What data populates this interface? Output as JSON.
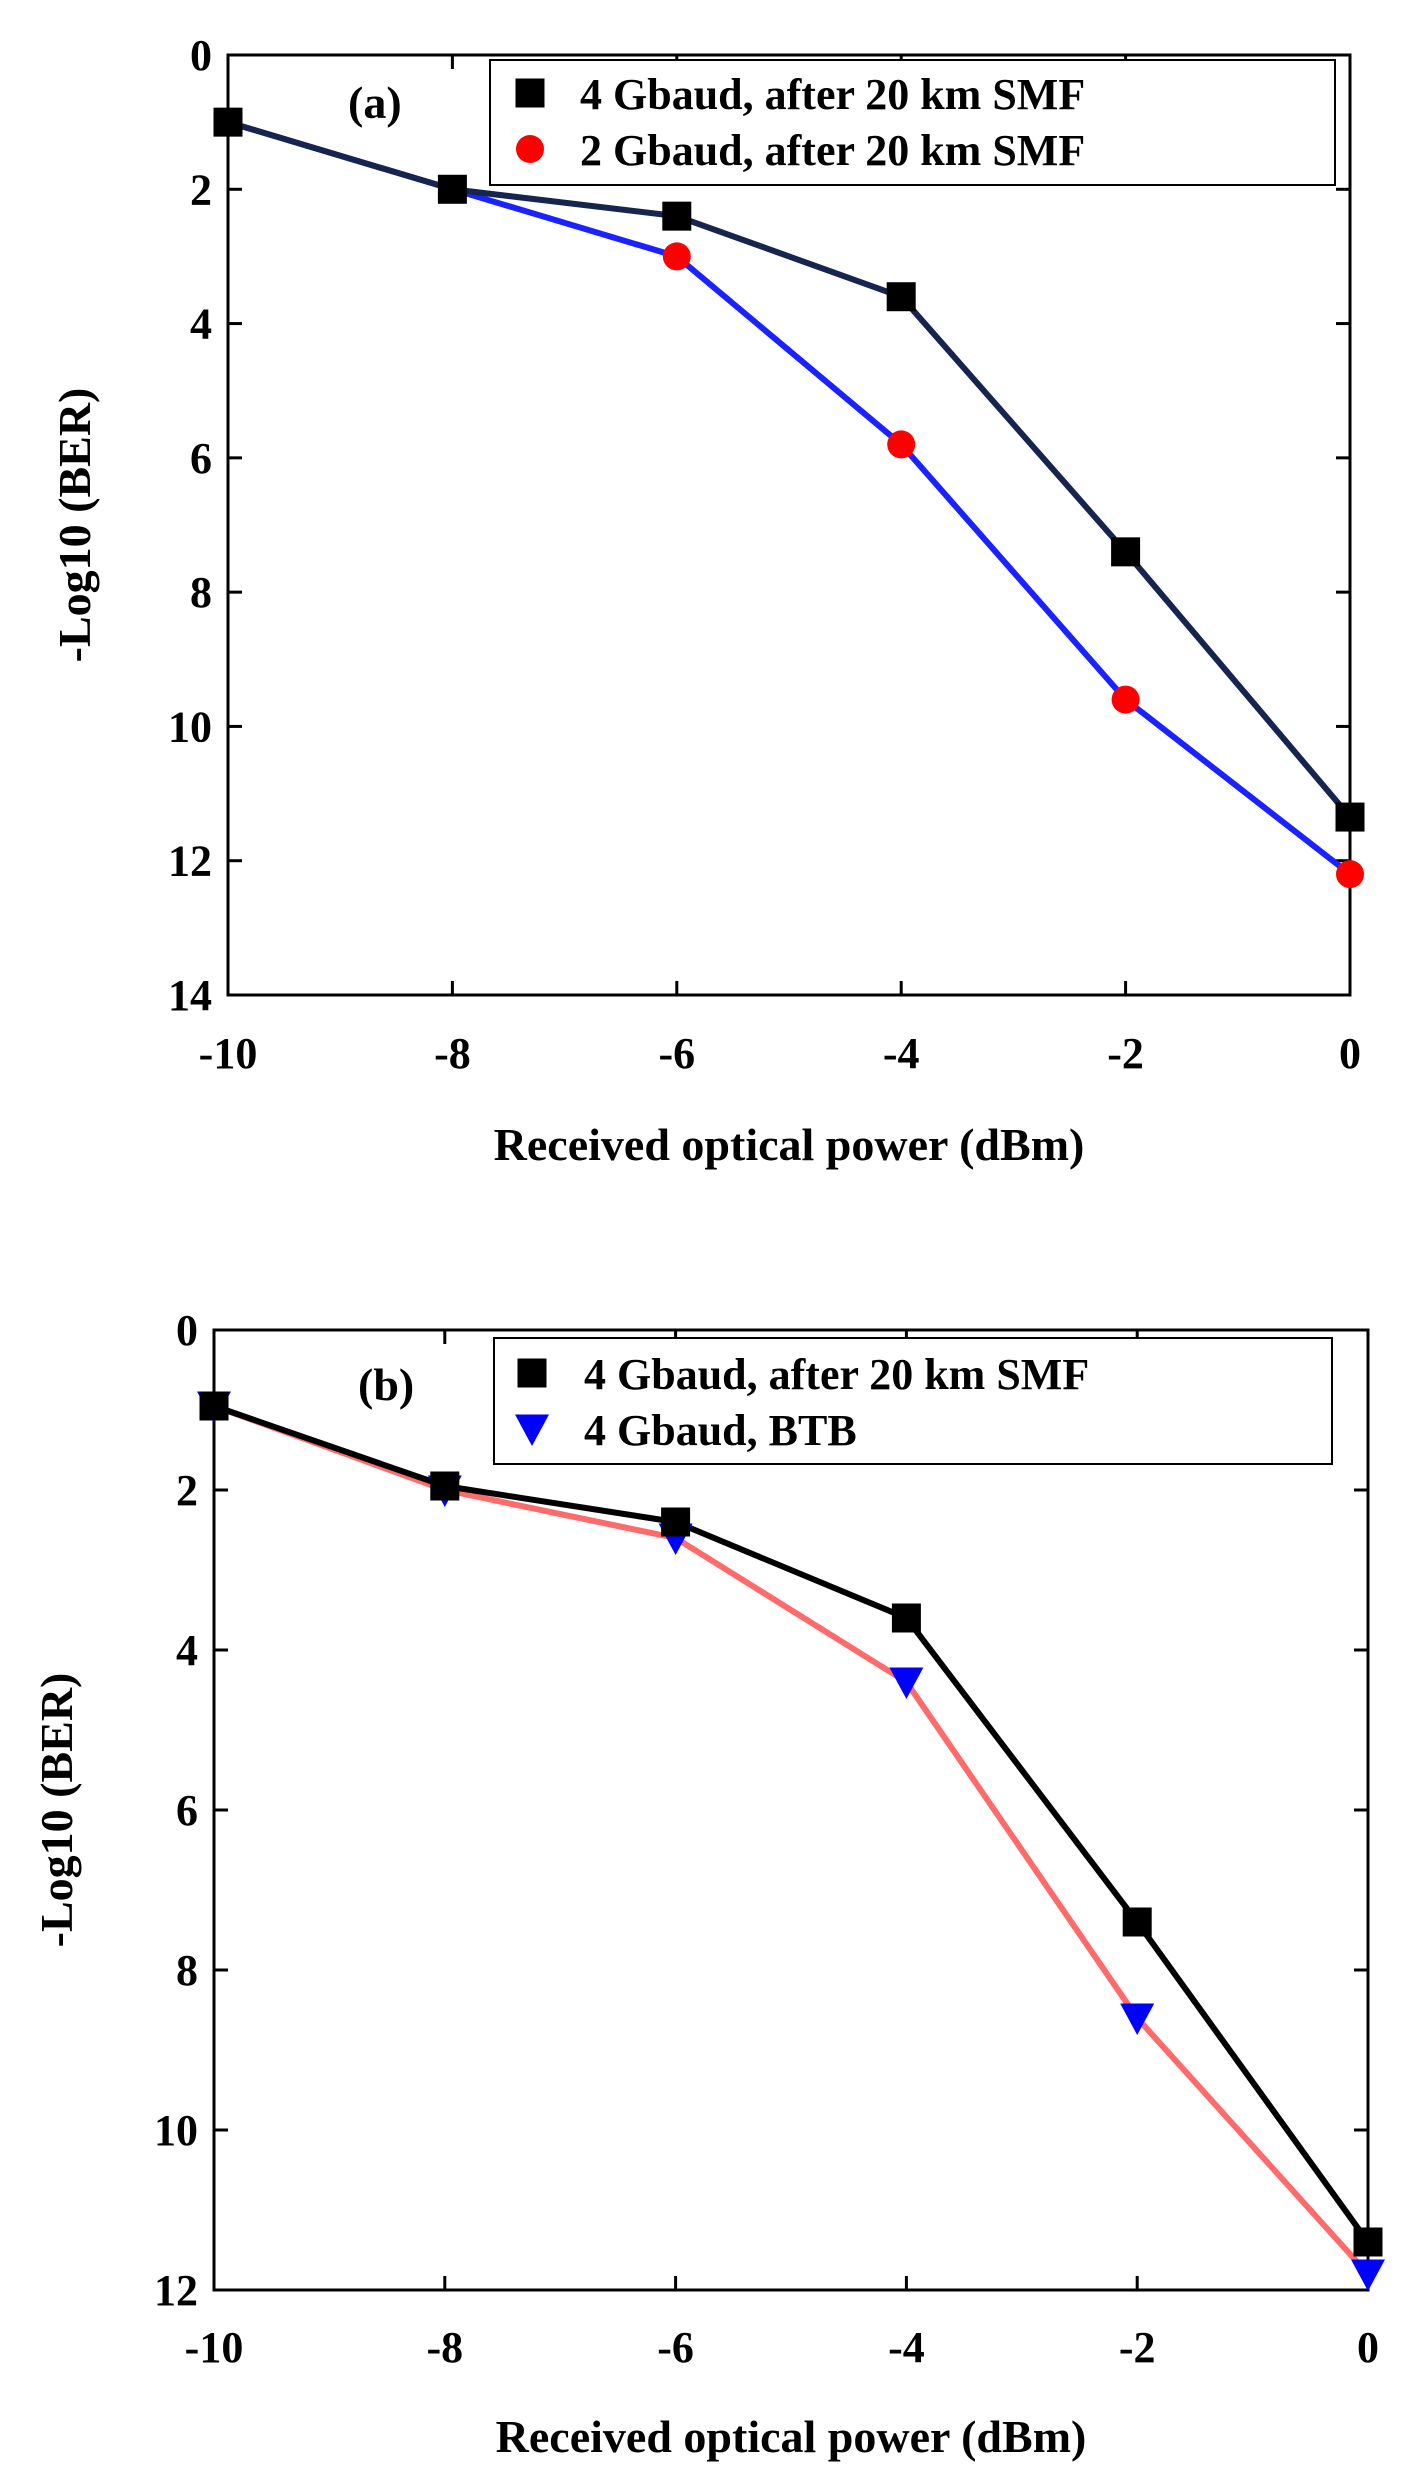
{
  "chart_data": [
    {
      "type": "line",
      "panel_label": "(a)",
      "xlabel": "Received optical power (dBm)",
      "ylabel": "-Log10 (BER)",
      "xlim": [
        -10,
        0
      ],
      "ylim": [
        0,
        14
      ],
      "y_inverted": true,
      "xticks": [
        -10,
        -8,
        -6,
        -4,
        -2,
        0
      ],
      "xtick_labels": [
        "-10",
        "-8",
        "-6",
        "-4",
        "-2",
        "0"
      ],
      "yticks": [
        0,
        2,
        4,
        6,
        8,
        10,
        12,
        14
      ],
      "ytick_labels": [
        "0",
        "2",
        "4",
        "6",
        "8",
        "10",
        "12",
        "14"
      ],
      "grid": false,
      "legend_position": "top-right",
      "series": [
        {
          "name": "4 Gbaud, after 20 km SMF",
          "marker": "square",
          "marker_color": "#000000",
          "line_color": "#16254f",
          "x": [
            -10,
            -8,
            -6,
            -4,
            -2,
            0
          ],
          "y": [
            1.0,
            2.0,
            2.4,
            3.6,
            7.4,
            11.35
          ]
        },
        {
          "name": "2 Gbaud, after 20 km SMF",
          "marker": "circle",
          "marker_color": "#ff0000",
          "line_color": "#1a22ff",
          "x": [
            -10,
            -8,
            -6,
            -4,
            -2,
            0
          ],
          "y": [
            1.0,
            2.0,
            3.0,
            5.8,
            9.6,
            12.2
          ]
        }
      ]
    },
    {
      "type": "line",
      "panel_label": "(b)",
      "xlabel": "Received optical power (dBm)",
      "ylabel": "-Log10 (BER)",
      "xlim": [
        -10,
        0
      ],
      "ylim": [
        0,
        12
      ],
      "y_inverted": true,
      "xticks": [
        -10,
        -8,
        -6,
        -4,
        -2,
        0
      ],
      "xtick_labels": [
        "-10",
        "-8",
        "-6",
        "-4",
        "-2",
        "0"
      ],
      "yticks": [
        0,
        2,
        4,
        6,
        8,
        10,
        12
      ],
      "ytick_labels": [
        "0",
        "2",
        "4",
        "6",
        "8",
        "10",
        "12"
      ],
      "grid": false,
      "legend_position": "top-right",
      "series": [
        {
          "name": "4 Gbaud, after 20 km SMF",
          "marker": "square",
          "marker_color": "#000000",
          "line_color": "#000000",
          "x": [
            -10,
            -8,
            -6,
            -4,
            -2,
            0
          ],
          "y": [
            0.95,
            1.95,
            2.4,
            3.6,
            7.4,
            11.4
          ]
        },
        {
          "name": "4 Gbaud, BTB",
          "marker": "triangle-down",
          "marker_color": "#0000ff",
          "line_color": "#ff6b6b",
          "x": [
            -10,
            -8,
            -6,
            -4,
            -2,
            0
          ],
          "y": [
            0.95,
            2.0,
            2.6,
            4.4,
            8.6,
            11.8
          ]
        }
      ]
    }
  ]
}
